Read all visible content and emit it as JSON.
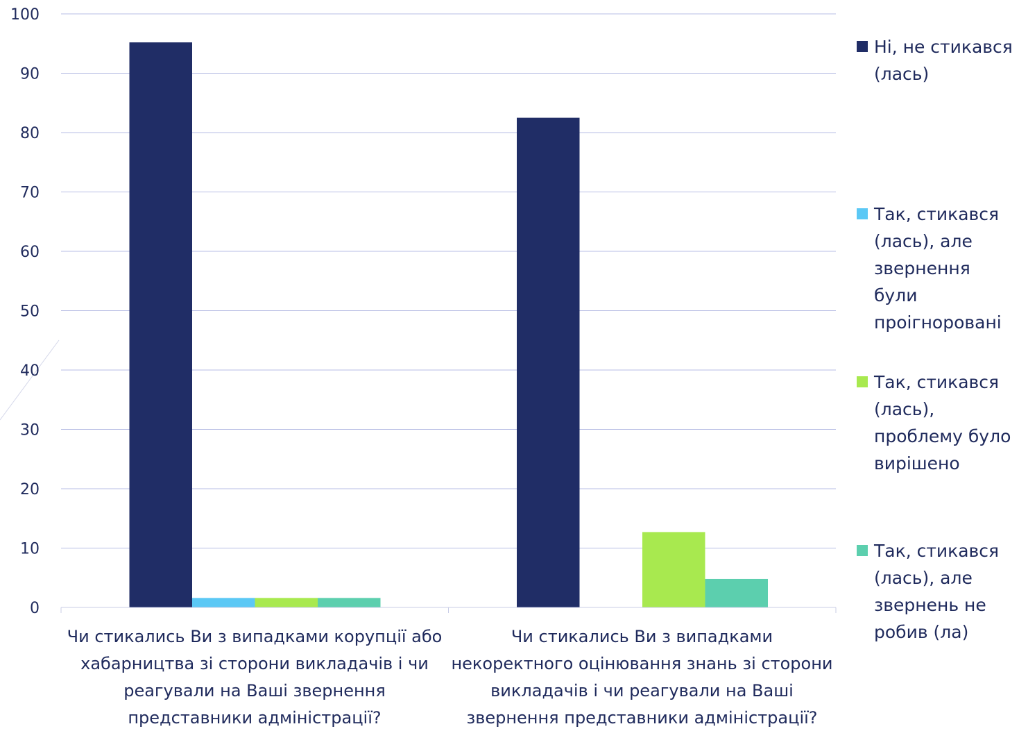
{
  "chart_data": {
    "type": "bar",
    "categories": [
      "Чи стикались Ви з випадками корупції або хабарництва зі сторони викладачів і чи реагували на Ваші звернення представники адміністрації?",
      "Чи стикались Ви з випадками некоректного оцінювання знань зі сторони викладачів і чи реагували на Ваші звернення представники адміністрації?"
    ],
    "series": [
      {
        "name": "Ні, не стикався (лась)",
        "values": [
          95.2,
          82.5
        ],
        "color": "#202d66"
      },
      {
        "name": "Так, стикався (лась), але звернення були проігноровані",
        "values": [
          1.6,
          0
        ],
        "color": "#5bc8f5"
      },
      {
        "name": "Так, стикався (лась), проблему було вирішено",
        "values": [
          1.6,
          12.7
        ],
        "color": "#a8e94f"
      },
      {
        "name": "Так, стикався (лась), але звернень не робив (ла)",
        "values": [
          1.6,
          4.8
        ],
        "color": "#5ccfae"
      }
    ],
    "ylim": [
      0,
      100
    ],
    "yticks": [
      0,
      10,
      20,
      30,
      40,
      50,
      60,
      70,
      80,
      90,
      100
    ],
    "grid": true,
    "legend_position": "right",
    "title": "",
    "xlabel": "",
    "ylabel": ""
  },
  "colors": {
    "text": "#1f2a5c",
    "gridline": "#b7bde4",
    "axis": "#c8cce6"
  }
}
